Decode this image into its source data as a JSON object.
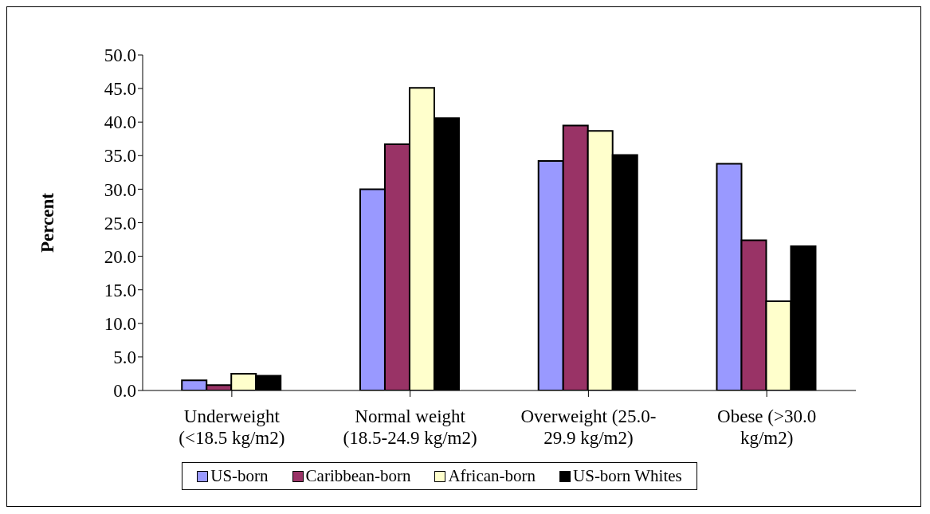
{
  "chart_data": {
    "type": "bar",
    "ylabel": "Percent",
    "categories": [
      "Underweight (<18.5 kg/m2)",
      "Normal weight (18.5-24.9 kg/m2)",
      "Overweight (25.0-29.9 kg/m2)",
      "Obese (>30.0 kg/m2)"
    ],
    "series": [
      {
        "name": "US-born",
        "color": "#9999ff",
        "values": [
          1.5,
          30.0,
          34.2,
          33.8
        ]
      },
      {
        "name": "Caribbean-born",
        "color": "#993366",
        "values": [
          0.8,
          36.7,
          39.5,
          22.4
        ]
      },
      {
        "name": "African-born",
        "color": "#ffffcc",
        "values": [
          2.5,
          45.1,
          38.7,
          13.3
        ]
      },
      {
        "name": "US-born Whites",
        "color": "#000000",
        "values": [
          2.2,
          40.6,
          35.1,
          21.5
        ]
      }
    ],
    "ylim": [
      0,
      50
    ],
    "yticks": [
      {
        "value": 0,
        "label": "0.0"
      },
      {
        "value": 5,
        "label": "5.0"
      },
      {
        "value": 10,
        "label": "10.0"
      },
      {
        "value": 15,
        "label": "15.0"
      },
      {
        "value": 20,
        "label": "20.0"
      },
      {
        "value": 25,
        "label": "25.0"
      },
      {
        "value": 30,
        "label": "30.0"
      },
      {
        "value": 35,
        "label": "35.0"
      },
      {
        "value": 40,
        "label": "40.0"
      },
      {
        "value": 45,
        "label": "45.0"
      },
      {
        "value": 50,
        "label": "50.0"
      }
    ],
    "grid": false,
    "legend": "bottom"
  }
}
